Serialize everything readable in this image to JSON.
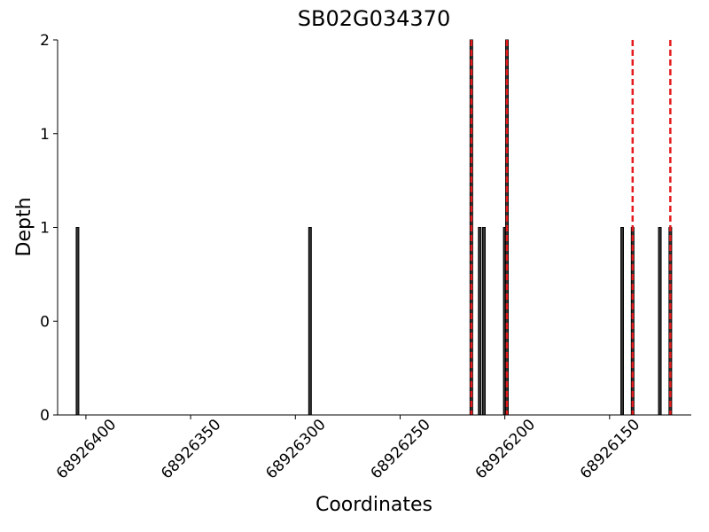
{
  "chart_data": {
    "type": "bar",
    "title": "SB02G034370",
    "xlabel": "Coordinates",
    "ylabel": "Depth",
    "x": [
      68926404,
      68926293,
      68926216,
      68926212,
      68926210,
      68926200,
      68926199,
      68926144,
      68926139,
      68926126,
      68926121
    ],
    "values": [
      1,
      1,
      2,
      1,
      1,
      1,
      2,
      1,
      1,
      1,
      1
    ],
    "color": "#333333",
    "edgecolor": "#000000",
    "vlines": [
      68926216,
      68926199,
      68926139,
      68926121
    ],
    "vline_color": "#e41a1c",
    "xlim": [
      68926413.5,
      68926111
    ],
    "xticks": [
      68926400,
      68926350,
      68926300,
      68926250,
      68926200,
      68926150
    ],
    "ylim": [
      0,
      2
    ],
    "yticks": [
      {
        "value": 0,
        "label": "0"
      },
      {
        "value": 0.5,
        "label": "0"
      },
      {
        "value": 1,
        "label": "1"
      },
      {
        "value": 1.5,
        "label": "1"
      },
      {
        "value": 2,
        "label": "2"
      }
    ],
    "grid": false
  }
}
